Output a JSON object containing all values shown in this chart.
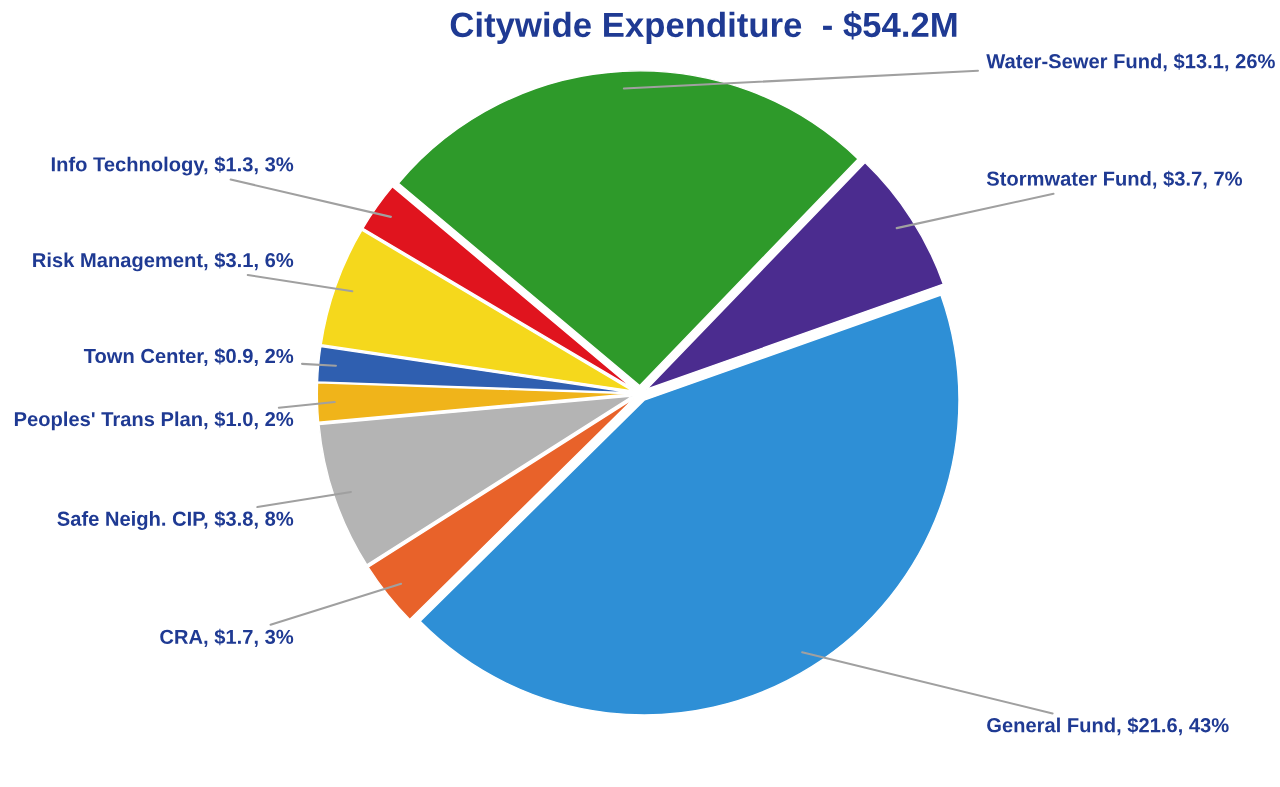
{
  "chart_data": {
    "type": "pie",
    "title": "Citywide Expenditure  - $54.2M",
    "categories": [
      "Water-Sewer Fund",
      "Stormwater Fund",
      "General Fund",
      "CRA",
      "Safe Neigh. CIP",
      "Peoples' Trans Plan",
      "Town Center",
      "Risk Management",
      "Info Technology"
    ],
    "values": [
      13.1,
      3.7,
      21.6,
      1.7,
      3.8,
      1.0,
      0.9,
      3.1,
      1.3
    ],
    "value_labels": [
      "$13.1, 26%",
      "$3.7, 7%",
      "$21.6, 43%",
      "$1.7, 3%",
      "$3.8, 8%",
      "$1.0, 2%",
      "$0.9, 2%",
      "$3.1, 6%",
      "$1.3, 3%"
    ],
    "colors": [
      "#2e9a2a",
      "#4b2c8f",
      "#2e8fd6",
      "#e8622a",
      "#b4b4b4",
      "#f0b41a",
      "#2f5fb0",
      "#f5d81c",
      "#e0141e"
    ],
    "legend": false
  }
}
